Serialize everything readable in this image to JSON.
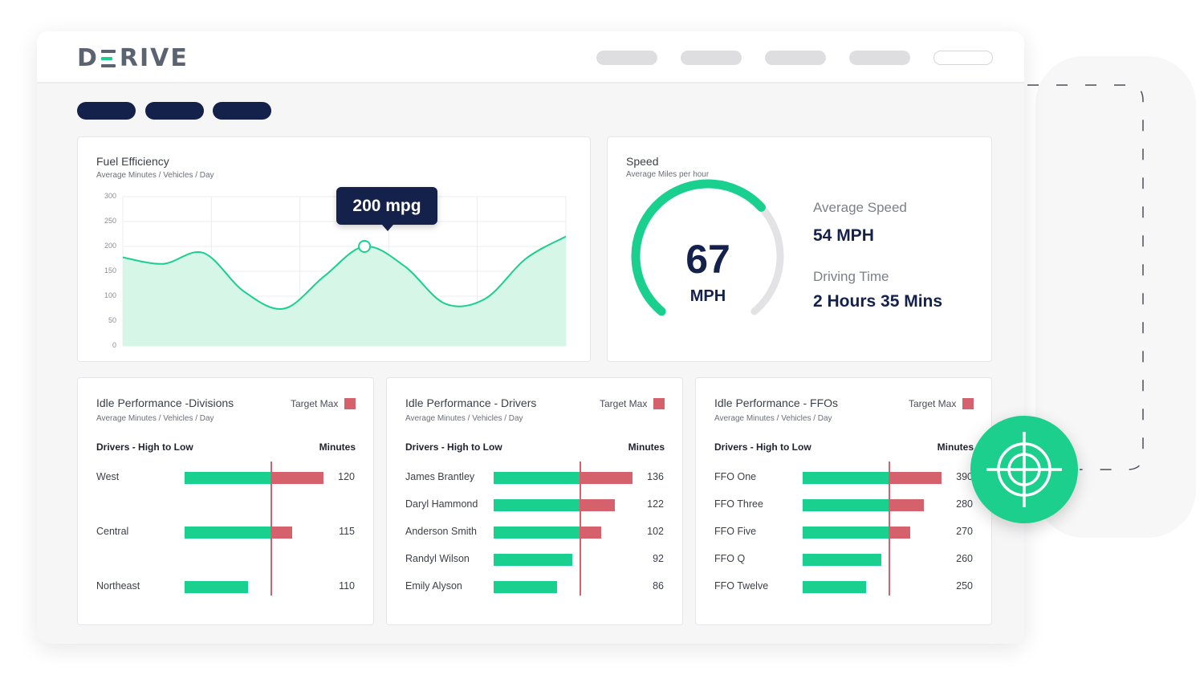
{
  "brand": {
    "logo_text": "DERIVE",
    "logo_left": "D",
    "logo_right": "RIVE"
  },
  "colors": {
    "navy": "#14214a",
    "green": "#1ad08e",
    "red": "#d5616c"
  },
  "fuel": {
    "title": "Fuel Efficiency",
    "subtitle": "Average Minutes / Vehicles / Day",
    "y_ticks": [
      "300",
      "250",
      "200",
      "150",
      "100",
      "50",
      "0"
    ],
    "tooltip": "200 mpg",
    "chart_data": {
      "type": "area",
      "ylim": [
        0,
        300
      ],
      "x": [
        0,
        1,
        2,
        3,
        4,
        5,
        6,
        7,
        8,
        9,
        10,
        11
      ],
      "values": [
        178,
        165,
        187,
        110,
        75,
        140,
        200,
        160,
        85,
        95,
        175,
        220
      ],
      "highlight": {
        "label": "200 mpg",
        "value": 200
      }
    }
  },
  "speed": {
    "title": "Speed",
    "subtitle": "Average Miles per hour",
    "gauge_value": "67",
    "gauge_unit": "MPH",
    "gauge_fraction": 0.67,
    "avg_label": "Average Speed",
    "avg_value": "54 MPH",
    "time_label": "Driving Time",
    "time_value": "2 Hours 35 Mins"
  },
  "idle": [
    {
      "title": "Idle Performance -Divisions",
      "subtitle": "Average Minutes / Vehicles / Day",
      "legend": "Target Max",
      "col_name": "Drivers - High to Low",
      "col_value": "Minutes",
      "rows": [
        {
          "name": "West",
          "value": "120"
        },
        {
          "name": "Central",
          "value": "115"
        },
        {
          "name": "Northeast",
          "value": "110"
        }
      ]
    },
    {
      "title": "Idle Performance - Drivers",
      "subtitle": "Average Minutes / Vehicles / Day",
      "legend": "Target Max",
      "col_name": "Drivers - High to Low",
      "col_value": "Minutes",
      "rows": [
        {
          "name": "James Brantley",
          "value": "136"
        },
        {
          "name": "Daryl Hammond",
          "value": "122"
        },
        {
          "name": "Anderson Smith",
          "value": "102"
        },
        {
          "name": "Randyl Wilson",
          "value": "92"
        },
        {
          "name": "Emily Alyson",
          "value": "86"
        }
      ]
    },
    {
      "title": "Idle Performance - FFOs",
      "subtitle": "Average Minutes / Vehicles / Day",
      "legend": "Target Max",
      "col_name": "Drivers - High to Low",
      "col_value": "Minutes",
      "rows": [
        {
          "name": "FFO One",
          "value": "390"
        },
        {
          "name": "FFO Three",
          "value": "280"
        },
        {
          "name": "FFO Five",
          "value": "270"
        },
        {
          "name": "FFO Q",
          "value": "260"
        },
        {
          "name": "FFO Twelve",
          "value": "250"
        }
      ]
    }
  ],
  "icons": {
    "target": "crosshair-icon"
  }
}
